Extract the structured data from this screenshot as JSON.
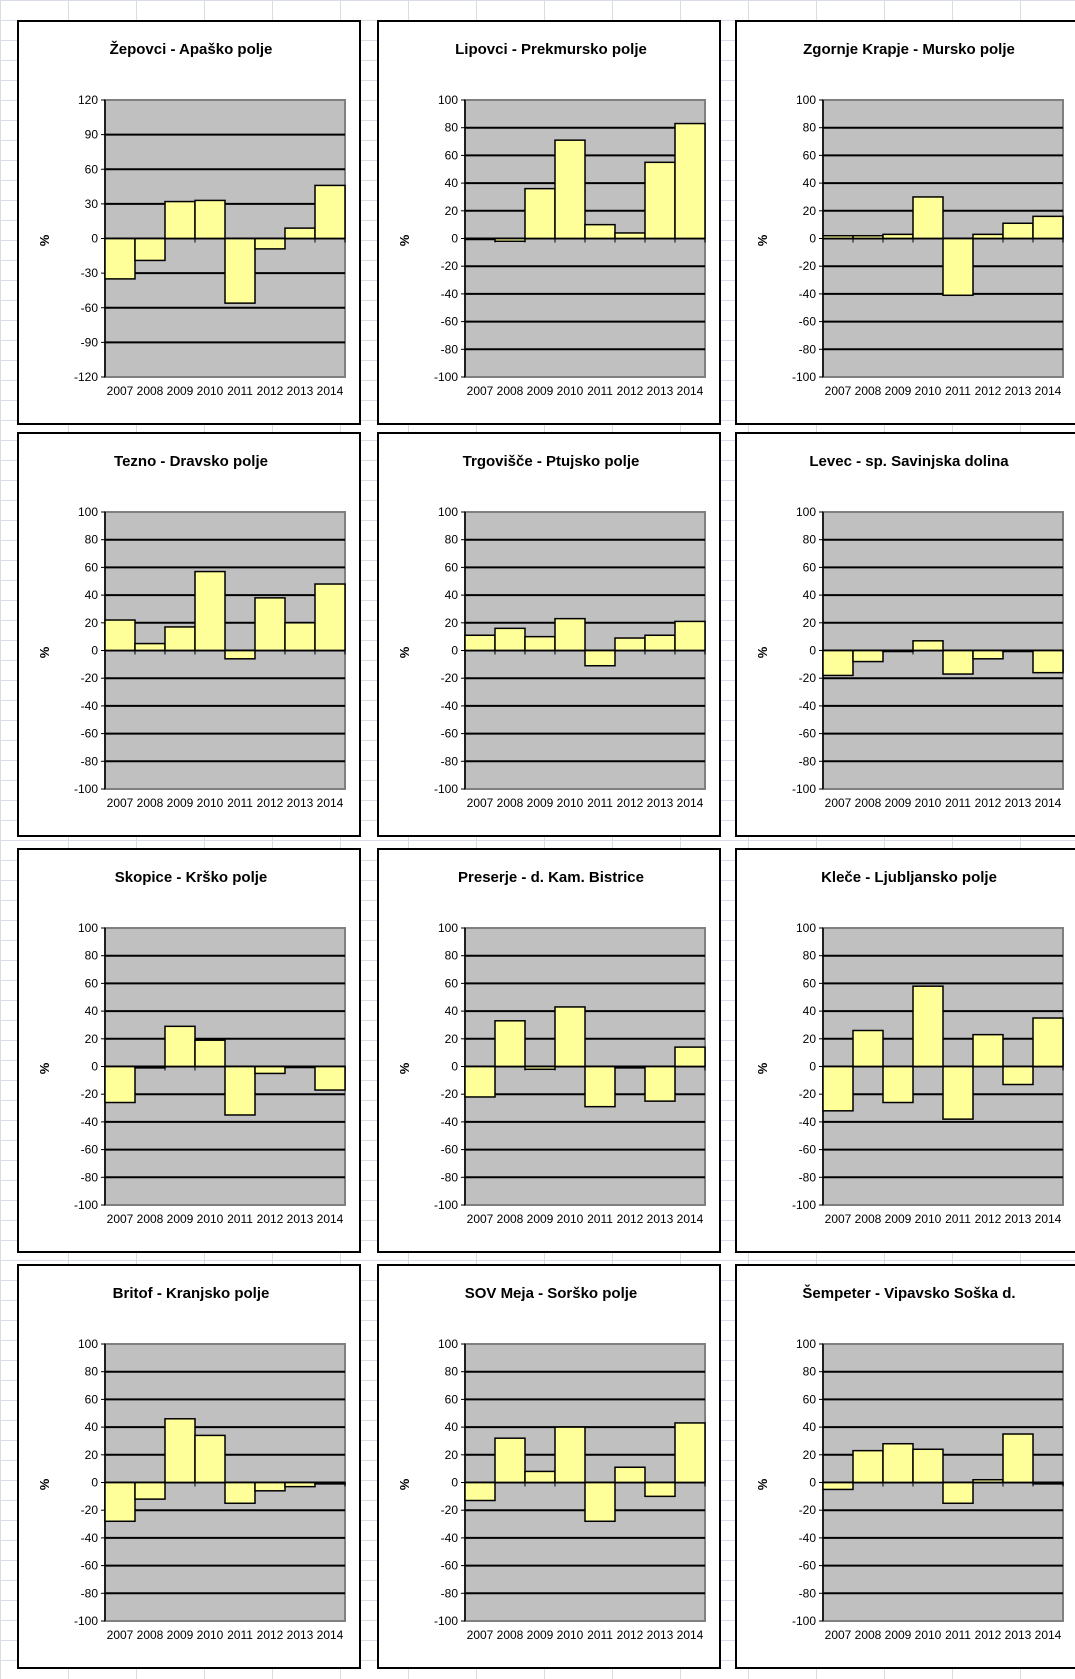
{
  "colors": {
    "bar_fill": "#ffff99",
    "plot_bg": "#c0c0c0",
    "page_bg": "#ffffff"
  },
  "chart_data": [
    {
      "type": "bar",
      "title": "Žepovci - Apaško  polje",
      "ylabel": "%",
      "xlabel": "",
      "ylim": [
        -120,
        120
      ],
      "yticks": [
        120,
        90,
        60,
        30,
        0,
        -30,
        -60,
        -90,
        -120
      ],
      "categories": [
        "2007",
        "2008",
        "2009",
        "2010",
        "2011",
        "2012",
        "2013",
        "2014"
      ],
      "values": [
        -35,
        -19,
        32,
        33,
        -56,
        -9,
        9,
        46
      ]
    },
    {
      "type": "bar",
      "title": "Lipovci - Prekmursko polje",
      "ylabel": "%",
      "xlabel": "",
      "ylim": [
        -100,
        100
      ],
      "yticks": [
        100,
        80,
        60,
        40,
        20,
        0,
        -20,
        -40,
        -60,
        -80,
        -100
      ],
      "categories": [
        "2007",
        "2008",
        "2009",
        "2010",
        "2011",
        "2012",
        "2013",
        "2014"
      ],
      "values": [
        0,
        -2,
        36,
        71,
        10,
        4,
        55,
        83
      ]
    },
    {
      "type": "bar",
      "title": "Zgornje Krapje - Mursko polje",
      "ylabel": "%",
      "xlabel": "",
      "ylim": [
        -100,
        100
      ],
      "yticks": [
        100,
        80,
        60,
        40,
        20,
        0,
        -20,
        -40,
        -60,
        -80,
        -100
      ],
      "categories": [
        "2007",
        "2008",
        "2009",
        "2010",
        "2011",
        "2012",
        "2013",
        "2014"
      ],
      "values": [
        2,
        2,
        3,
        30,
        -41,
        3,
        11,
        16
      ]
    },
    {
      "type": "bar",
      "title": "Tezno - Dravsko  polje",
      "ylabel": "%",
      "xlabel": "",
      "ylim": [
        -100,
        100
      ],
      "yticks": [
        100,
        80,
        60,
        40,
        20,
        0,
        -20,
        -40,
        -60,
        -80,
        -100
      ],
      "categories": [
        "2007",
        "2008",
        "2009",
        "2010",
        "2011",
        "2012",
        "2013",
        "2014"
      ],
      "values": [
        22,
        5,
        17,
        57,
        -6,
        38,
        20,
        48
      ]
    },
    {
      "type": "bar",
      "title": "Trgovišče - Ptujsko polje",
      "ylabel": "%",
      "xlabel": "",
      "ylim": [
        -100,
        100
      ],
      "yticks": [
        100,
        80,
        60,
        40,
        20,
        0,
        -20,
        -40,
        -60,
        -80,
        -100
      ],
      "categories": [
        "2007",
        "2008",
        "2009",
        "2010",
        "2011",
        "2012",
        "2013",
        "2014"
      ],
      "values": [
        11,
        16,
        10,
        23,
        -11,
        9,
        11,
        21
      ]
    },
    {
      "type": "bar",
      "title": "Levec - sp. Savinjska dolina",
      "ylabel": "%",
      "xlabel": "",
      "ylim": [
        -100,
        100
      ],
      "yticks": [
        100,
        80,
        60,
        40,
        20,
        0,
        -20,
        -40,
        -60,
        -80,
        -100
      ],
      "categories": [
        "2007",
        "2008",
        "2009",
        "2010",
        "2011",
        "2012",
        "2013",
        "2014"
      ],
      "values": [
        -18,
        -8,
        0,
        7,
        -17,
        -6,
        0,
        -16
      ]
    },
    {
      "type": "bar",
      "title": "Skopice - Krško  polje",
      "ylabel": "%",
      "xlabel": "",
      "ylim": [
        -100,
        100
      ],
      "yticks": [
        100,
        80,
        60,
        40,
        20,
        0,
        -20,
        -40,
        -60,
        -80,
        -100
      ],
      "categories": [
        "2007",
        "2008",
        "2009",
        "2010",
        "2011",
        "2012",
        "2013",
        "2014"
      ],
      "values": [
        -26,
        -1,
        29,
        19,
        -35,
        -5,
        0,
        -17
      ]
    },
    {
      "type": "bar",
      "title": "Preserje - d. Kam. Bistrice",
      "ylabel": "%",
      "xlabel": "",
      "ylim": [
        -100,
        100
      ],
      "yticks": [
        100,
        80,
        60,
        40,
        20,
        0,
        -20,
        -40,
        -60,
        -80,
        -100
      ],
      "categories": [
        "2007",
        "2008",
        "2009",
        "2010",
        "2011",
        "2012",
        "2013",
        "2014"
      ],
      "values": [
        -22,
        33,
        -2,
        43,
        -29,
        -1,
        -25,
        14
      ]
    },
    {
      "type": "bar",
      "title": "Kleče - Ljubljansko  polje",
      "ylabel": "%",
      "xlabel": "",
      "ylim": [
        -100,
        100
      ],
      "yticks": [
        100,
        80,
        60,
        40,
        20,
        0,
        -20,
        -40,
        -60,
        -80,
        -100
      ],
      "categories": [
        "2007",
        "2008",
        "2009",
        "2010",
        "2011",
        "2012",
        "2013",
        "2014"
      ],
      "values": [
        -32,
        26,
        -26,
        58,
        -38,
        23,
        -13,
        35
      ]
    },
    {
      "type": "bar",
      "title": "Britof - Kranjsko  polje",
      "ylabel": "%",
      "xlabel": "",
      "ylim": [
        -100,
        100
      ],
      "yticks": [
        100,
        80,
        60,
        40,
        20,
        0,
        -20,
        -40,
        -60,
        -80,
        -100
      ],
      "categories": [
        "2007",
        "2008",
        "2009",
        "2010",
        "2011",
        "2012",
        "2013",
        "2014"
      ],
      "values": [
        -28,
        -12,
        46,
        34,
        -15,
        -6,
        -3,
        -1
      ]
    },
    {
      "type": "bar",
      "title": "SOV Meja - Sorško polje",
      "ylabel": "%",
      "xlabel": "",
      "ylim": [
        -100,
        100
      ],
      "yticks": [
        100,
        80,
        60,
        40,
        20,
        0,
        -20,
        -40,
        -60,
        -80,
        -100
      ],
      "categories": [
        "2007",
        "2008",
        "2009",
        "2010",
        "2011",
        "2012",
        "2013",
        "2014"
      ],
      "values": [
        -13,
        32,
        8,
        40,
        -28,
        11,
        -10,
        43
      ]
    },
    {
      "type": "bar",
      "title": "Šempeter - Vipavsko Soška d.",
      "ylabel": "%",
      "xlabel": "",
      "ylim": [
        -100,
        100
      ],
      "yticks": [
        100,
        80,
        60,
        40,
        20,
        0,
        -20,
        -40,
        -60,
        -80,
        -100
      ],
      "categories": [
        "2007",
        "2008",
        "2009",
        "2010",
        "2011",
        "2012",
        "2013",
        "2014"
      ],
      "values": [
        -5,
        23,
        28,
        24,
        -15,
        2,
        35,
        -1
      ]
    }
  ]
}
